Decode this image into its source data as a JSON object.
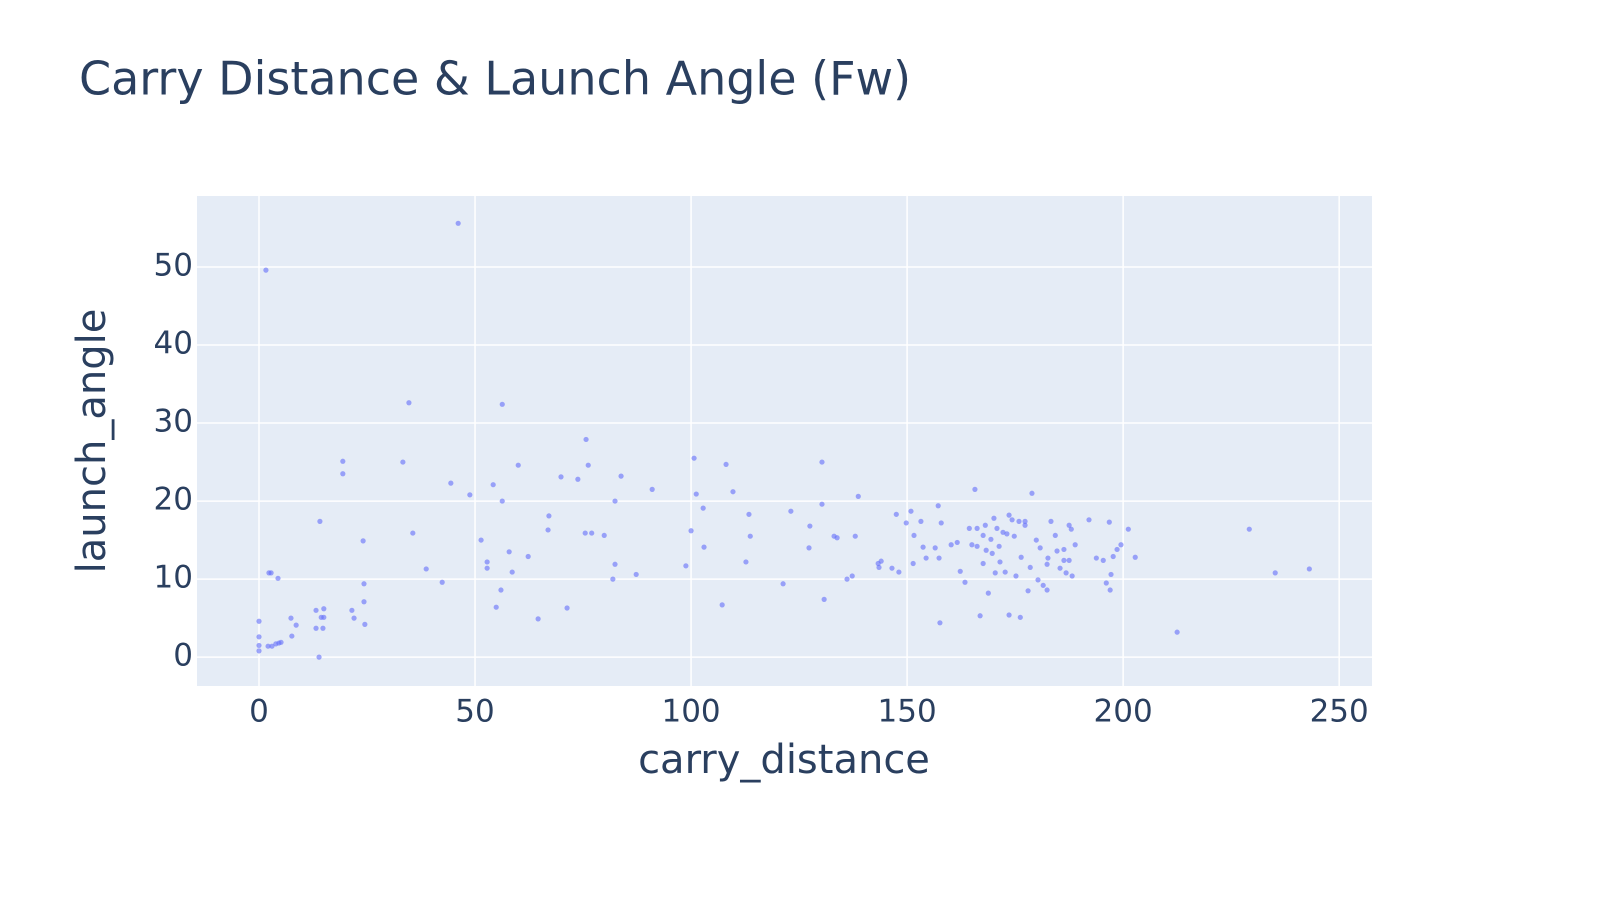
{
  "chart_data": {
    "type": "scatter",
    "title": "Carry Distance & Launch Angle (Fw)",
    "xlabel": "carry_distance",
    "ylabel": "launch_angle",
    "color": "#636efa",
    "grid": true,
    "xlim": [
      -14.35,
      257.6
    ],
    "ylim": [
      -3.7,
      59.1
    ],
    "xticks": [
      0,
      50,
      100,
      150,
      200,
      250
    ],
    "yticks": [
      0,
      10,
      20,
      30,
      40,
      50
    ],
    "x": [
      0,
      0,
      0,
      0,
      1.6,
      2.3,
      2.8,
      2.1,
      3,
      3.9,
      4.6,
      5.1,
      4.4,
      7.4,
      7.6,
      8.6,
      13.2,
      13.2,
      13.9,
      14.1,
      14.4,
      15,
      15,
      14.8,
      19.4,
      19.4,
      21.5,
      22,
      24.1,
      24.3,
      24.3,
      24.5,
      33.3,
      34.7,
      35.6,
      38.7,
      42.4,
      44.4,
      46.1,
      48.8,
      51.4,
      52.8,
      52.8,
      54.2,
      54.9,
      56.3,
      56.3,
      56,
      57.9,
      58.6,
      60,
      62.3,
      64.6,
      66.9,
      67.1,
      69.9,
      71.3,
      73.8,
      75.7,
      76.2,
      75.5,
      77,
      79.9,
      82.4,
      82.4,
      81.9,
      83.8,
      87.3,
      91,
      98.8,
      100,
      100.7,
      101.2,
      102.8,
      103,
      107.2,
      108.1,
      109.7,
      113.4,
      113.7,
      112.7,
      121.3,
      123.1,
      127.3,
      127.5,
      130.3,
      130.3,
      130.8,
      133.1,
      133.8,
      136.1,
      137.3,
      138,
      138.7,
      143.3,
      143.5,
      144,
      146.5,
      147.5,
      148.1,
      149.8,
      150.9,
      151.6,
      151.4,
      153.2,
      153.7,
      154.4,
      156.5,
      157.2,
      157.4,
      157.6,
      157.9,
      160.2,
      161.6,
      162.3,
      163.4,
      164.4,
      165,
      165.7,
      166.2,
      166.2,
      166.9,
      167.6,
      167.6,
      168.1,
      168.3,
      168.8,
      169.4,
      169.7,
      170.1,
      170.4,
      170.8,
      171.3,
      171.5,
      172.2,
      172.7,
      173.1,
      173.6,
      173.6,
      174.3,
      174.8,
      175.2,
      175.9,
      176.2,
      176.4,
      177.3,
      177.3,
      178,
      178.5,
      178.9,
      179.9,
      180.3,
      180.8,
      181.5,
      182.4,
      182.4,
      182.6,
      183.3,
      184.3,
      184.7,
      185.4,
      186.3,
      186.3,
      186.8,
      187.5,
      187.5,
      188,
      188.2,
      188.9,
      192.1,
      193.8,
      195.4,
      196.1,
      196.8,
      197,
      197.2,
      197.7,
      198.6,
      199.5,
      201.2,
      202.8,
      212.5,
      229.2,
      235.2,
      243.1
    ],
    "values": [
      4.6,
      2.6,
      1.5,
      0.8,
      49.6,
      10.8,
      10.8,
      1.4,
      1.4,
      1.7,
      1.8,
      1.9,
      10.1,
      5,
      2.7,
      4.1,
      6,
      3.7,
      0,
      17.4,
      5.1,
      6.2,
      5.1,
      3.7,
      25.1,
      23.5,
      6,
      5,
      14.9,
      9.4,
      7.1,
      4.2,
      25,
      32.6,
      15.9,
      11.3,
      9.6,
      22.3,
      55.6,
      20.8,
      15,
      12.2,
      11.4,
      22.1,
      6.4,
      32.4,
      20,
      8.6,
      13.5,
      10.9,
      24.6,
      12.9,
      4.9,
      16.3,
      18.1,
      23.1,
      6.3,
      22.8,
      27.9,
      24.6,
      15.9,
      15.9,
      15.6,
      20,
      11.9,
      10,
      23.2,
      10.6,
      21.5,
      11.7,
      16.2,
      25.5,
      20.9,
      19.1,
      14.1,
      6.7,
      24.7,
      21.2,
      18.3,
      15.5,
      12.2,
      9.4,
      18.7,
      14,
      16.8,
      25,
      19.6,
      7.4,
      15.5,
      15.3,
      10,
      10.4,
      15.5,
      20.6,
      12,
      11.5,
      12.3,
      11.4,
      18.3,
      10.9,
      17.2,
      18.7,
      15.6,
      12,
      17.4,
      14.1,
      12.7,
      14,
      19.4,
      12.7,
      4.4,
      17.2,
      14.4,
      14.7,
      11,
      9.6,
      16.5,
      14.4,
      21.5,
      16.5,
      14.2,
      5.3,
      12,
      15.6,
      16.9,
      13.7,
      8.2,
      15.1,
      13.3,
      17.8,
      10.8,
      16.5,
      14.2,
      12.2,
      16,
      10.9,
      15.8,
      18.2,
      5.4,
      17.6,
      15.5,
      10.4,
      17.4,
      5.1,
      12.8,
      16.9,
      17.4,
      8.5,
      11.5,
      21,
      15,
      9.9,
      14,
      9.2,
      8.6,
      11.9,
      12.7,
      17.4,
      15.6,
      13.6,
      11.4,
      13.8,
      12.4,
      10.8,
      12.4,
      16.9,
      16.4,
      10.4,
      14.4,
      17.6,
      12.7,
      12.4,
      9.5,
      17.3,
      8.6,
      10.6,
      12.9,
      13.8,
      14.4,
      16.4,
      12.8,
      3.2,
      16.4,
      10.8,
      11.3
    ]
  }
}
